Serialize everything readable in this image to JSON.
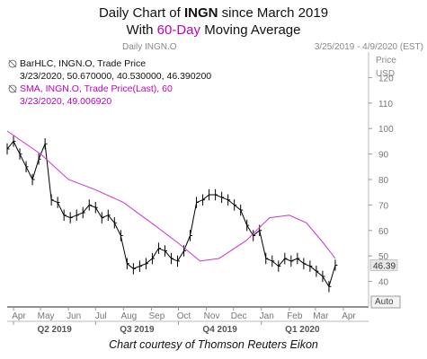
{
  "title": {
    "line1_pre": "Daily Chart of ",
    "ticker": "INGN",
    "line1_post": " since March 2019",
    "line2_pre": "With ",
    "ma_label": "60-Day",
    "line2_post": " Moving Average"
  },
  "header": {
    "daily_label": "Daily INGN.O",
    "date_range": "3/25/2019 - 4/9/2020 (EST)",
    "price_label": "Price",
    "currency": "USD"
  },
  "legend": {
    "bar_title": "BarHLC, INGN.O, Trade Price",
    "bar_values": "3/23/2020, 50.670000, 40.530000, 46.390200",
    "sma_title": "SMA, INGN.O, Trade Price(Last),  60",
    "sma_values": "3/23/2020, 49.006920"
  },
  "axis_control": "Auto",
  "credit": "Chart courtesy of Thomson Reuters Eikon",
  "colors": {
    "price": "#000000",
    "sma": "#cc33cc",
    "accent": "#c000c0"
  },
  "chart_data": {
    "type": "line",
    "ylim": [
      30,
      130
    ],
    "y_ticks": [
      40,
      50,
      60,
      70,
      80,
      90,
      100,
      110,
      120
    ],
    "x_months": [
      "Apr",
      "May",
      "Jun",
      "Jul",
      "Aug",
      "Sep",
      "Oct",
      "Nov",
      "Dec",
      "Jan",
      "Feb",
      "Mar",
      "Apr"
    ],
    "x_quarters": [
      "Q2 2019",
      "Q3 2019",
      "Q4 2019",
      "Q1 2020"
    ],
    "grid": false,
    "legend_position": "top-left",
    "last_price": 46.39,
    "series": [
      {
        "name": "BarHLC, INGN.O, Trade Price",
        "style": "ohlc-bars",
        "x": [
          "2019-03-25",
          "2019-04-01",
          "2019-04-08",
          "2019-04-15",
          "2019-04-22",
          "2019-04-29",
          "2019-05-06",
          "2019-05-13",
          "2019-05-20",
          "2019-05-27",
          "2019-06-03",
          "2019-06-10",
          "2019-06-17",
          "2019-06-24",
          "2019-07-01",
          "2019-07-08",
          "2019-07-15",
          "2019-07-22",
          "2019-07-29",
          "2019-08-05",
          "2019-08-12",
          "2019-08-19",
          "2019-08-26",
          "2019-09-02",
          "2019-09-09",
          "2019-09-16",
          "2019-09-23",
          "2019-09-30",
          "2019-10-07",
          "2019-10-14",
          "2019-10-21",
          "2019-10-28",
          "2019-11-04",
          "2019-11-11",
          "2019-11-18",
          "2019-11-25",
          "2019-12-02",
          "2019-12-09",
          "2019-12-16",
          "2019-12-23",
          "2019-12-30",
          "2020-01-06",
          "2020-01-13",
          "2020-01-20",
          "2020-01-27",
          "2020-02-03",
          "2020-02-10",
          "2020-02-17",
          "2020-02-24",
          "2020-03-02",
          "2020-03-09",
          "2020-03-16",
          "2020-03-23"
        ],
        "y": [
          92,
          95,
          90,
          85,
          80,
          88,
          94,
          72,
          71,
          66,
          65,
          66,
          67,
          70,
          69,
          65,
          66,
          63,
          58,
          47,
          45,
          46,
          47,
          49,
          53,
          52,
          49,
          48,
          52,
          58,
          71,
          72,
          74,
          74,
          73,
          72,
          70,
          68,
          62,
          58,
          60,
          49,
          48,
          46,
          49,
          48,
          49,
          47,
          46,
          44,
          42,
          38,
          46.39
        ]
      },
      {
        "name": "SMA, INGN.O, Trade Price(Last),  60",
        "style": "line",
        "x": [
          "2019-03-25",
          "2019-05-01",
          "2019-06-01",
          "2019-07-01",
          "2019-08-01",
          "2019-09-01",
          "2019-10-01",
          "2019-10-25",
          "2019-11-15",
          "2019-12-15",
          "2020-01-10",
          "2020-02-01",
          "2020-02-20",
          "2020-03-10",
          "2020-03-23"
        ],
        "y": [
          99,
          90,
          80,
          76,
          71,
          63,
          55,
          48,
          49,
          56,
          65,
          66,
          63,
          55,
          49
        ]
      }
    ]
  }
}
